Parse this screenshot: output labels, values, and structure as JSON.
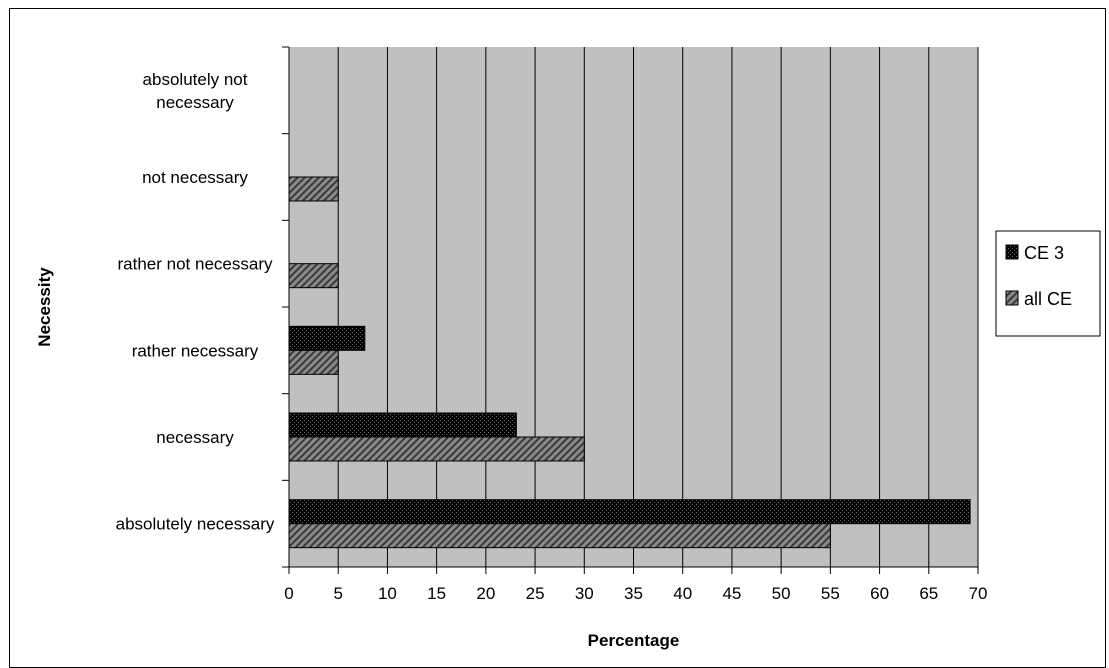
{
  "chart_data": {
    "type": "bar",
    "orientation": "horizontal",
    "categories": [
      "absolutely not necessary",
      "not necessary",
      "rather not necessary",
      "rather necessary",
      "necessary",
      "absolutely necessary"
    ],
    "series": [
      {
        "name": "CE 3",
        "values": [
          0,
          0,
          0,
          7.7,
          23.1,
          69.2
        ],
        "color": "#222222"
      },
      {
        "name": "all CE",
        "values": [
          0,
          5,
          5,
          5,
          30,
          55
        ],
        "color": "#808080"
      }
    ],
    "xlabel": "Percentage",
    "ylabel": "Necessity",
    "xlim": [
      0,
      70
    ],
    "xticks": [
      "0",
      "5",
      "10",
      "15",
      "20",
      "25",
      "30",
      "35",
      "40",
      "45",
      "50",
      "55",
      "60",
      "65",
      "70"
    ],
    "grid": "vertical",
    "legend_position": "right",
    "plot_background": "#c0c0c0"
  }
}
